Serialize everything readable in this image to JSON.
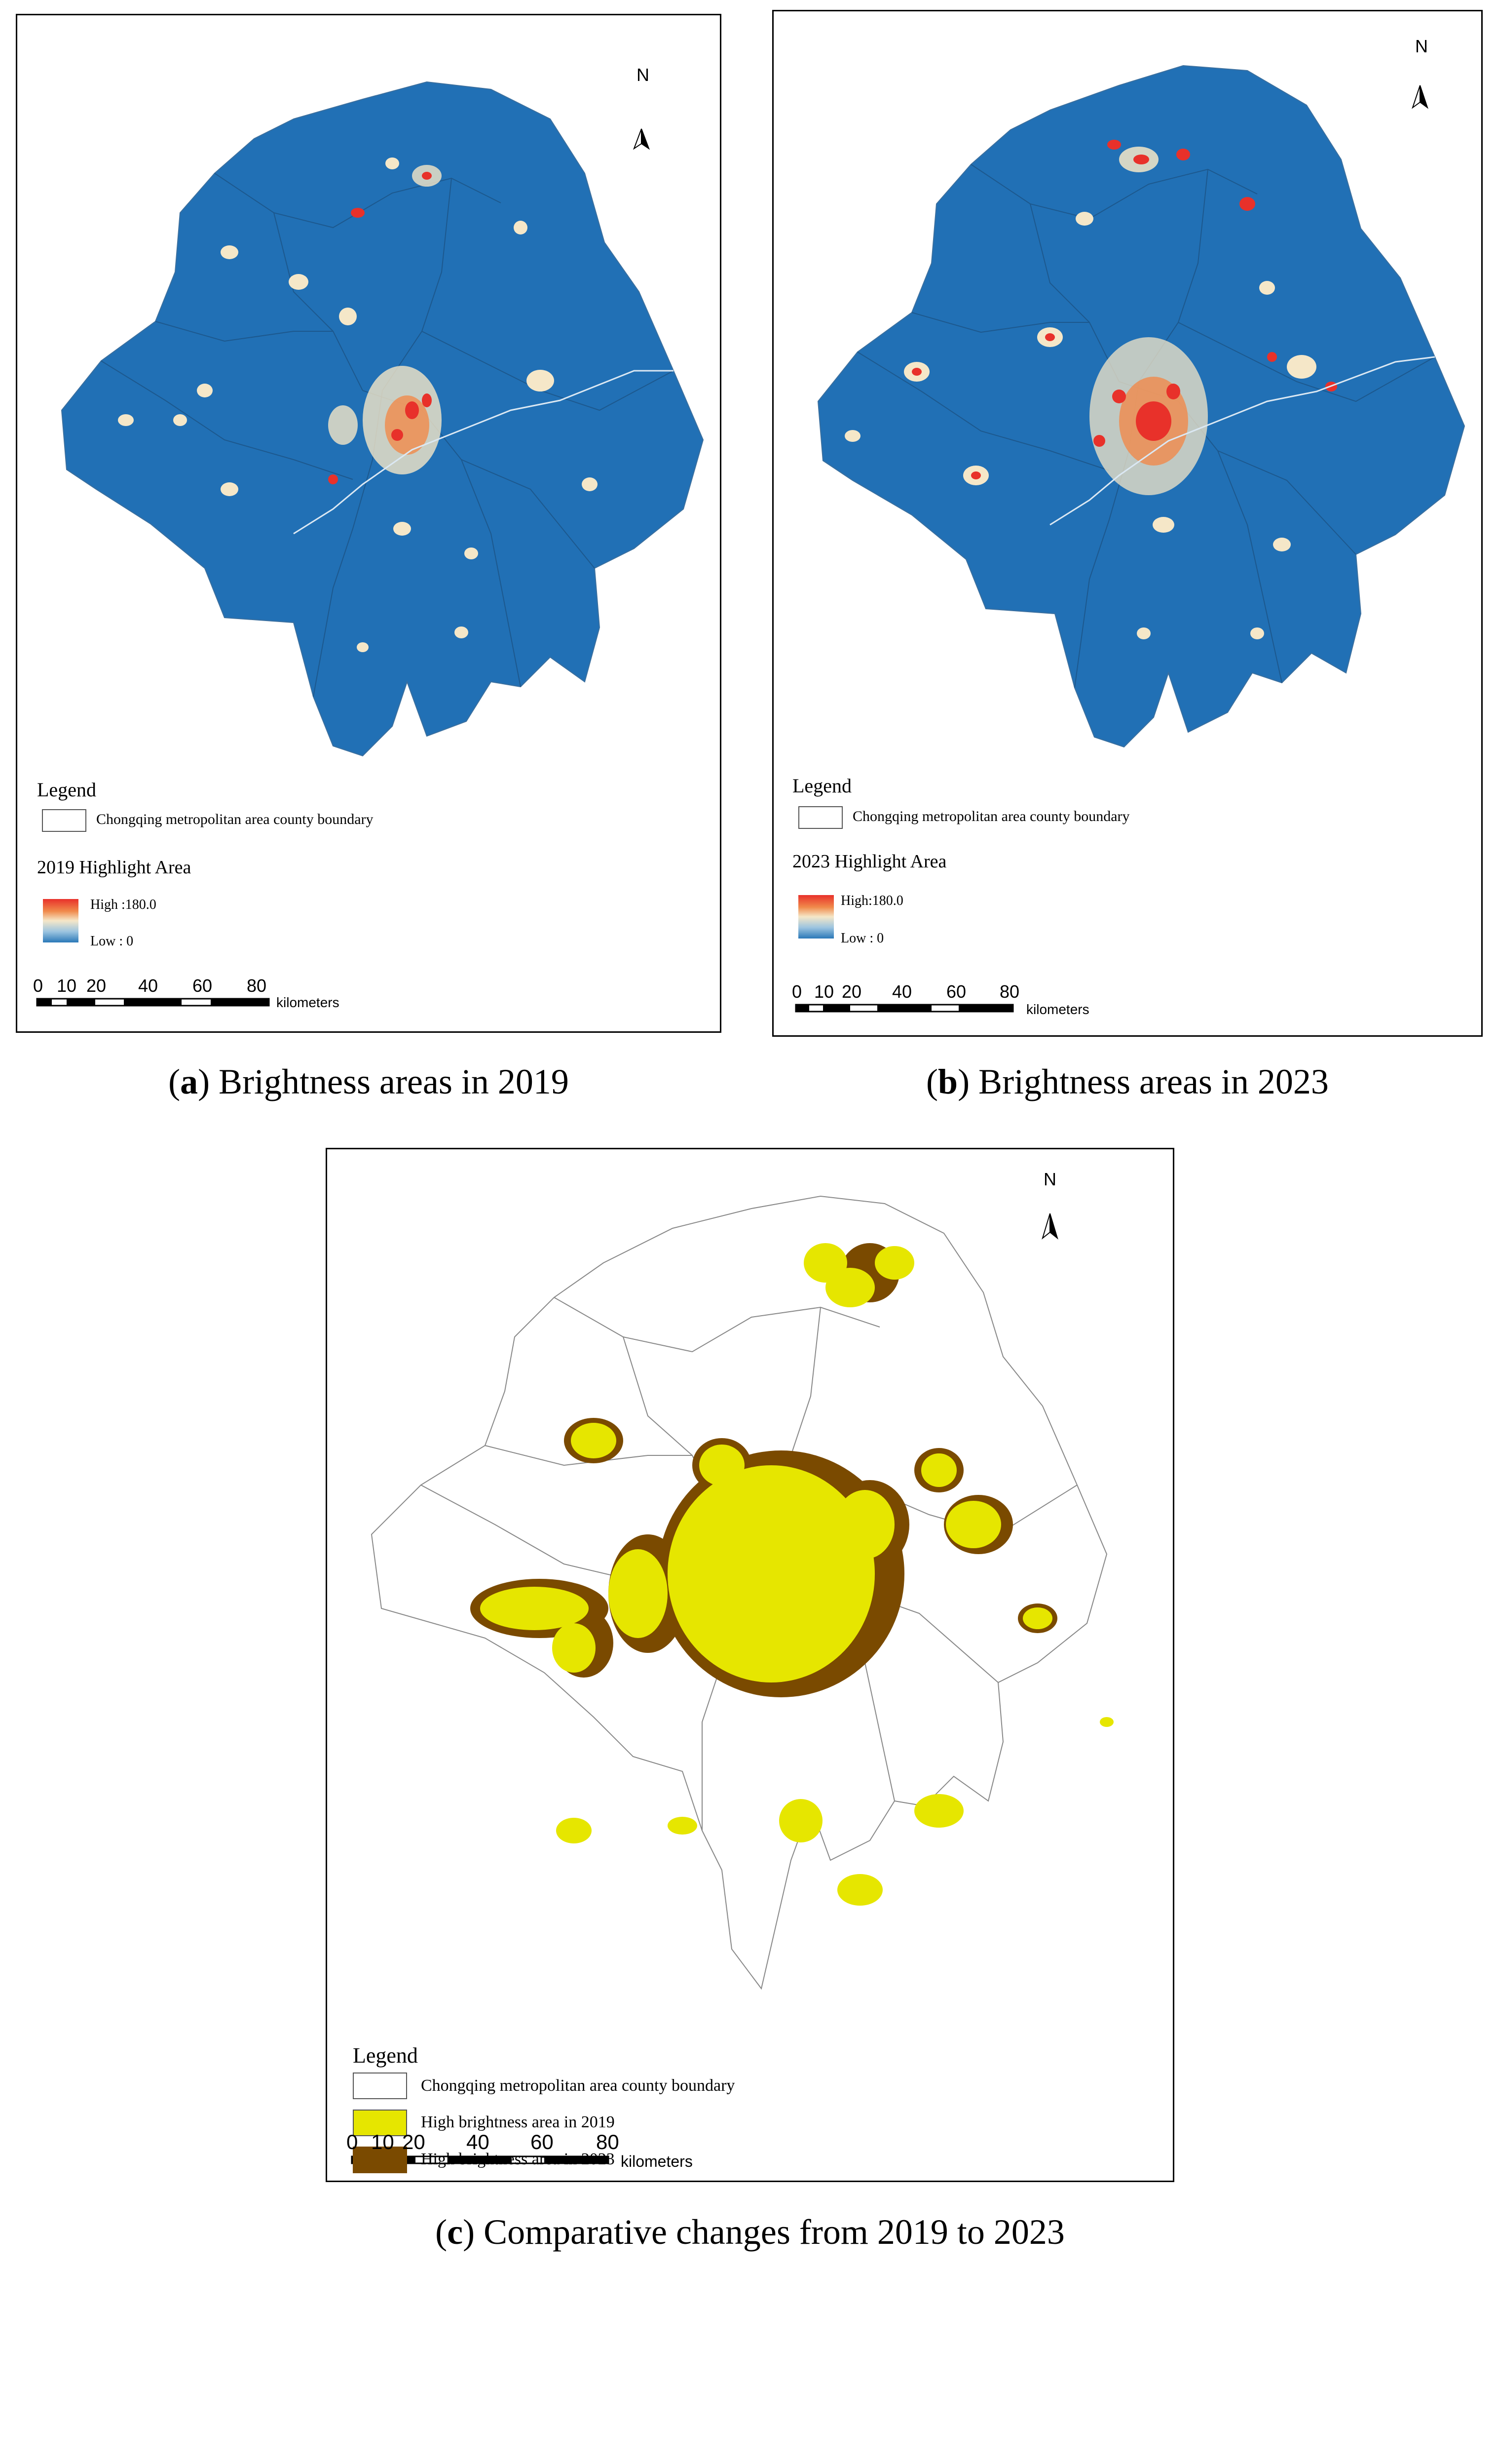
{
  "panel_a": {
    "legend_title": "Legend",
    "boundary_label": "Chongqing metropolitan area county boundary",
    "highlight_title": "2019 Highlight Area",
    "high_label": "High :180.0",
    "low_label": "Low :  0",
    "scale_numbers": [
      "0",
      "10",
      "20",
      "40",
      "60",
      "80"
    ],
    "scale_unit": "kilometers",
    "north": "N",
    "caption_letter": "a",
    "caption_text": ") Brightness areas in 2019"
  },
  "panel_b": {
    "legend_title": "Legend",
    "boundary_label": "Chongqing metropolitan area county boundary",
    "highlight_title": "2023   Highlight Area",
    "high_label": "High:180.0",
    "low_label": "Low :  0",
    "scale_numbers": [
      "0",
      "10",
      "20",
      "40",
      "60",
      "80"
    ],
    "scale_unit": "kilometers",
    "north": "N",
    "caption_letter": "b",
    "caption_text": ") Brightness areas in 2023"
  },
  "panel_c": {
    "legend_title": "Legend",
    "boundary_label": "Chongqing metropolitan area county boundary",
    "item_2019": "High brightness area in 2019",
    "item_2023": "High brightness area in 2023",
    "scale_numbers": [
      "0",
      "10",
      "20",
      "40",
      "60",
      "80"
    ],
    "scale_unit": "kilometers",
    "north": "N",
    "caption_letter": "c",
    "caption_text": ") Comparative changes from 2019 to 2023"
  },
  "colors": {
    "map_blue": "#2170b5",
    "high_red": "#e8312a",
    "yellow_2019": "#e6e600",
    "brown_2023": "#7a4a00"
  }
}
